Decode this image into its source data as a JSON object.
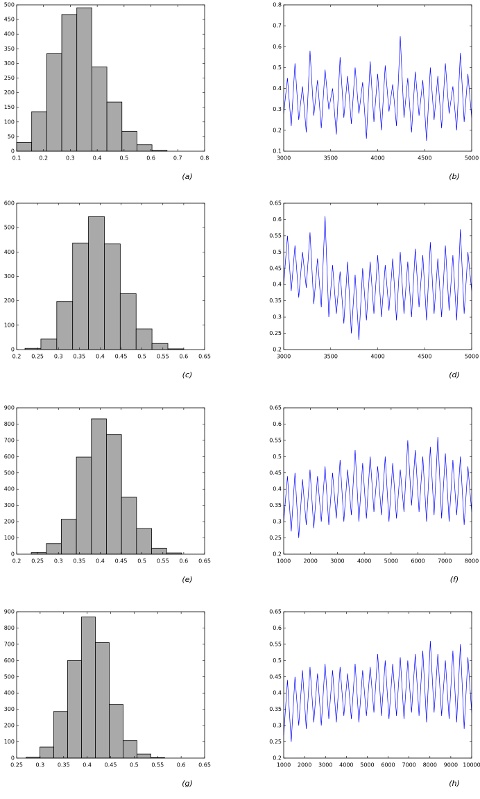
{
  "chart_data": [
    {
      "type": "histogram",
      "annotation": "(a)",
      "color": "#a9a9a9",
      "bins": [
        0.1,
        0.156,
        0.212,
        0.268,
        0.324,
        0.38,
        0.436,
        0.492,
        0.548,
        0.604,
        0.66
      ],
      "counts": [
        30,
        135,
        333,
        467,
        490,
        288,
        168,
        68,
        22,
        3
      ],
      "xlim": [
        0.1,
        0.8
      ],
      "xticks": [
        0.1,
        0.2,
        0.3,
        0.4,
        0.5,
        0.6,
        0.7,
        0.8
      ],
      "ylim": [
        0,
        500
      ],
      "yticks": [
        0,
        50,
        100,
        150,
        200,
        250,
        300,
        350,
        400,
        450,
        500
      ]
    },
    {
      "type": "line",
      "annotation": "(b)",
      "color": "#0000ff",
      "x": [
        3000,
        3040,
        3080,
        3120,
        3160,
        3200,
        3240,
        3280,
        3320,
        3360,
        3400,
        3440,
        3480,
        3520,
        3560,
        3600,
        3640,
        3680,
        3720,
        3760,
        3800,
        3840,
        3880,
        3920,
        3960,
        4000,
        4040,
        4080,
        4120,
        4160,
        4200,
        4240,
        4280,
        4320,
        4360,
        4400,
        4440,
        4480,
        4520,
        4560,
        4600,
        4640,
        4680,
        4720,
        4760,
        4800,
        4840,
        4880,
        4920,
        4960,
        5000
      ],
      "values": [
        0.28,
        0.45,
        0.22,
        0.52,
        0.25,
        0.41,
        0.19,
        0.58,
        0.27,
        0.44,
        0.21,
        0.49,
        0.3,
        0.4,
        0.18,
        0.55,
        0.26,
        0.46,
        0.23,
        0.5,
        0.28,
        0.43,
        0.16,
        0.53,
        0.24,
        0.47,
        0.2,
        0.51,
        0.29,
        0.42,
        0.22,
        0.65,
        0.26,
        0.45,
        0.19,
        0.48,
        0.27,
        0.44,
        0.15,
        0.5,
        0.25,
        0.46,
        0.21,
        0.52,
        0.28,
        0.41,
        0.2,
        0.57,
        0.24,
        0.47,
        0.26
      ],
      "xlim": [
        3000,
        5000
      ],
      "xticks": [
        3000,
        3500,
        4000,
        4500,
        5000
      ],
      "ylim": [
        0.1,
        0.8
      ],
      "yticks": [
        0.1,
        0.2,
        0.3,
        0.4,
        0.5,
        0.6,
        0.7,
        0.8
      ]
    },
    {
      "type": "histogram",
      "annotation": "(c)",
      "color": "#a9a9a9",
      "bins": [
        0.22,
        0.258,
        0.296,
        0.334,
        0.372,
        0.41,
        0.448,
        0.486,
        0.524,
        0.562,
        0.6
      ],
      "counts": [
        5,
        43,
        197,
        437,
        545,
        433,
        229,
        85,
        25,
        3
      ],
      "xlim": [
        0.2,
        0.65
      ],
      "xticks": [
        0.2,
        0.25,
        0.3,
        0.35,
        0.4,
        0.45,
        0.5,
        0.55,
        0.6,
        0.65
      ],
      "ylim": [
        0,
        600
      ],
      "yticks": [
        0,
        100,
        200,
        300,
        400,
        500,
        600
      ]
    },
    {
      "type": "line",
      "annotation": "(d)",
      "color": "#0000ff",
      "x": [
        3000,
        3040,
        3080,
        3120,
        3160,
        3200,
        3240,
        3280,
        3320,
        3360,
        3400,
        3440,
        3480,
        3520,
        3560,
        3600,
        3640,
        3680,
        3720,
        3760,
        3800,
        3840,
        3880,
        3920,
        3960,
        4000,
        4040,
        4080,
        4120,
        4160,
        4200,
        4240,
        4280,
        4320,
        4360,
        4400,
        4440,
        4480,
        4520,
        4560,
        4600,
        4640,
        4680,
        4720,
        4760,
        4800,
        4840,
        4880,
        4920,
        4960,
        5000
      ],
      "values": [
        0.4,
        0.55,
        0.38,
        0.52,
        0.36,
        0.5,
        0.39,
        0.56,
        0.34,
        0.48,
        0.33,
        0.61,
        0.3,
        0.46,
        0.31,
        0.44,
        0.28,
        0.47,
        0.25,
        0.43,
        0.23,
        0.45,
        0.29,
        0.47,
        0.31,
        0.49,
        0.3,
        0.46,
        0.32,
        0.48,
        0.29,
        0.5,
        0.31,
        0.47,
        0.3,
        0.51,
        0.33,
        0.49,
        0.29,
        0.53,
        0.31,
        0.48,
        0.3,
        0.52,
        0.32,
        0.49,
        0.29,
        0.57,
        0.31,
        0.5,
        0.38
      ],
      "xlim": [
        3000,
        5000
      ],
      "xticks": [
        3000,
        3500,
        4000,
        4500,
        5000
      ],
      "ylim": [
        0.2,
        0.65
      ],
      "yticks": [
        0.2,
        0.25,
        0.3,
        0.35,
        0.4,
        0.45,
        0.5,
        0.55,
        0.6,
        0.65
      ]
    },
    {
      "type": "histogram",
      "annotation": "(e)",
      "color": "#a9a9a9",
      "bins": [
        0.235,
        0.271,
        0.307,
        0.343,
        0.379,
        0.415,
        0.451,
        0.487,
        0.523,
        0.559,
        0.595
      ],
      "counts": [
        10,
        65,
        215,
        597,
        832,
        735,
        350,
        158,
        37,
        8
      ],
      "xlim": [
        0.2,
        0.65
      ],
      "xticks": [
        0.2,
        0.25,
        0.3,
        0.35,
        0.4,
        0.45,
        0.5,
        0.55,
        0.6,
        0.65
      ],
      "ylim": [
        0,
        900
      ],
      "yticks": [
        0,
        100,
        200,
        300,
        400,
        500,
        600,
        700,
        800,
        900
      ]
    },
    {
      "type": "line",
      "annotation": "(f)",
      "color": "#0000ff",
      "x": [
        1000,
        1140,
        1280,
        1420,
        1560,
        1700,
        1840,
        1980,
        2120,
        2260,
        2400,
        2540,
        2680,
        2820,
        2960,
        3100,
        3240,
        3380,
        3520,
        3660,
        3800,
        3940,
        4080,
        4220,
        4360,
        4500,
        4640,
        4780,
        4920,
        5060,
        5200,
        5340,
        5480,
        5620,
        5760,
        5900,
        6040,
        6180,
        6320,
        6460,
        6600,
        6740,
        6880,
        7020,
        7160,
        7300,
        7440,
        7580,
        7720,
        7860,
        8000
      ],
      "values": [
        0.3,
        0.44,
        0.27,
        0.45,
        0.25,
        0.43,
        0.29,
        0.46,
        0.28,
        0.44,
        0.3,
        0.47,
        0.29,
        0.45,
        0.31,
        0.49,
        0.3,
        0.46,
        0.32,
        0.52,
        0.3,
        0.48,
        0.31,
        0.5,
        0.33,
        0.47,
        0.32,
        0.5,
        0.3,
        0.48,
        0.31,
        0.46,
        0.33,
        0.55,
        0.35,
        0.52,
        0.33,
        0.5,
        0.3,
        0.53,
        0.32,
        0.56,
        0.31,
        0.51,
        0.3,
        0.49,
        0.32,
        0.5,
        0.29,
        0.47,
        0.33
      ],
      "xlim": [
        1000,
        8000
      ],
      "xticks": [
        1000,
        2000,
        3000,
        4000,
        5000,
        6000,
        7000,
        8000
      ],
      "ylim": [
        0.2,
        0.65
      ],
      "yticks": [
        0.2,
        0.25,
        0.3,
        0.35,
        0.4,
        0.45,
        0.5,
        0.55,
        0.6,
        0.65
      ]
    },
    {
      "type": "histogram",
      "annotation": "(g)",
      "color": "#a9a9a9",
      "bins": [
        0.27,
        0.2995,
        0.329,
        0.3585,
        0.388,
        0.4175,
        0.447,
        0.4765,
        0.506,
        0.5355,
        0.565
      ],
      "counts": [
        5,
        68,
        287,
        600,
        868,
        710,
        330,
        108,
        25,
        3
      ],
      "xlim": [
        0.25,
        0.65
      ],
      "xticks": [
        0.25,
        0.3,
        0.35,
        0.4,
        0.45,
        0.5,
        0.55,
        0.6,
        0.65
      ],
      "ylim": [
        0,
        900
      ],
      "yticks": [
        0,
        100,
        200,
        300,
        400,
        500,
        600,
        700,
        800,
        900
      ]
    },
    {
      "type": "line",
      "annotation": "(h)",
      "color": "#0000ff",
      "x": [
        1000,
        1180,
        1360,
        1540,
        1720,
        1900,
        2080,
        2260,
        2440,
        2620,
        2800,
        2980,
        3160,
        3340,
        3520,
        3700,
        3880,
        4060,
        4240,
        4420,
        4600,
        4780,
        4960,
        5140,
        5320,
        5500,
        5680,
        5860,
        6040,
        6220,
        6400,
        6580,
        6760,
        6940,
        7120,
        7300,
        7480,
        7660,
        7840,
        8020,
        8200,
        8380,
        8560,
        8740,
        8920,
        9100,
        9280,
        9460,
        9640,
        9820,
        10000
      ],
      "values": [
        0.27,
        0.44,
        0.25,
        0.45,
        0.3,
        0.47,
        0.29,
        0.48,
        0.31,
        0.46,
        0.3,
        0.49,
        0.32,
        0.47,
        0.31,
        0.48,
        0.33,
        0.46,
        0.32,
        0.49,
        0.31,
        0.47,
        0.33,
        0.48,
        0.34,
        0.52,
        0.33,
        0.5,
        0.32,
        0.49,
        0.33,
        0.51,
        0.32,
        0.5,
        0.34,
        0.52,
        0.33,
        0.53,
        0.31,
        0.56,
        0.34,
        0.52,
        0.33,
        0.5,
        0.32,
        0.53,
        0.31,
        0.55,
        0.29,
        0.51,
        0.34
      ],
      "xlim": [
        1000,
        10000
      ],
      "xticks": [
        1000,
        2000,
        3000,
        4000,
        5000,
        6000,
        7000,
        8000,
        9000,
        10000
      ],
      "ylim": [
        0.2,
        0.65
      ],
      "yticks": [
        0.2,
        0.25,
        0.3,
        0.35,
        0.4,
        0.45,
        0.5,
        0.55,
        0.6,
        0.65
      ]
    }
  ]
}
